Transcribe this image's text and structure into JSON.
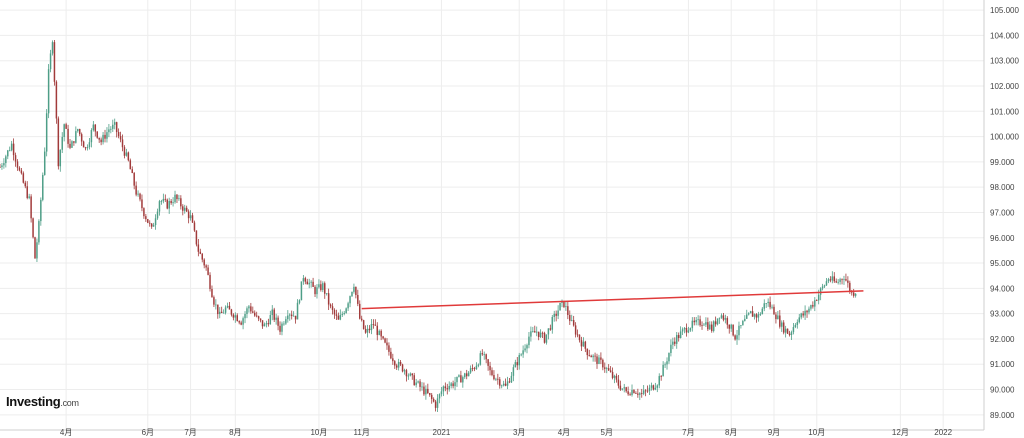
{
  "brand": {
    "name": "Investing",
    "suffix": ".com"
  },
  "colors": {
    "up": "#4e9e87",
    "down": "#a13a3a",
    "trendline": "#e03a3a",
    "grid": "#ededed",
    "axis": "#cfcfcf"
  },
  "chart_data": {
    "type": "candlestick",
    "title": "",
    "xlabel": "",
    "ylabel": "",
    "ylim": [
      88.4,
      105.4
    ],
    "grid": true,
    "legend": "none",
    "y_ticks": [
      "89.000",
      "90.000",
      "91.000",
      "92.000",
      "93.000",
      "94.000",
      "95.000",
      "96.000",
      "97.000",
      "98.000",
      "99.000",
      "100.000",
      "101.000",
      "102.000",
      "103.000",
      "104.000",
      "105.000"
    ],
    "x_ticks": [
      {
        "label": "4月",
        "t": 34
      },
      {
        "label": "6月",
        "t": 76
      },
      {
        "label": "7月",
        "t": 98
      },
      {
        "label": "8月",
        "t": 121
      },
      {
        "label": "10月",
        "t": 164
      },
      {
        "label": "11月",
        "t": 186
      },
      {
        "label": "2021",
        "t": 227
      },
      {
        "label": "3月",
        "t": 267
      },
      {
        "label": "4月",
        "t": 290
      },
      {
        "label": "5月",
        "t": 312
      },
      {
        "label": "7月",
        "t": 354
      },
      {
        "label": "8月",
        "t": 376
      },
      {
        "label": "9月",
        "t": 398
      },
      {
        "label": "10月",
        "t": 420
      },
      {
        "label": "12月",
        "t": 463
      },
      {
        "label": "2022",
        "t": 485
      }
    ],
    "t_range": [
      0,
      506
    ],
    "anchors": [
      [
        0,
        98.8
      ],
      [
        6,
        99.7
      ],
      [
        10,
        98.6
      ],
      [
        15,
        97.5
      ],
      [
        18,
        95.2
      ],
      [
        20,
        96.5
      ],
      [
        23,
        99.5
      ],
      [
        25,
        102.5
      ],
      [
        27,
        103.9
      ],
      [
        30,
        99.0
      ],
      [
        33,
        100.5
      ],
      [
        36,
        99.5
      ],
      [
        40,
        100.3
      ],
      [
        44,
        99.5
      ],
      [
        48,
        100.4
      ],
      [
        52,
        99.8
      ],
      [
        56,
        100.3
      ],
      [
        59,
        100.4
      ],
      [
        62,
        99.8
      ],
      [
        66,
        99.0
      ],
      [
        70,
        97.8
      ],
      [
        74,
        97.0
      ],
      [
        78,
        96.3
      ],
      [
        82,
        97.5
      ],
      [
        86,
        97.3
      ],
      [
        90,
        97.6
      ],
      [
        94,
        97.2
      ],
      [
        98,
        96.8
      ],
      [
        102,
        95.5
      ],
      [
        106,
        94.8
      ],
      [
        110,
        93.5
      ],
      [
        113,
        92.9
      ],
      [
        116,
        93.2
      ],
      [
        120,
        93.0
      ],
      [
        124,
        92.7
      ],
      [
        128,
        93.3
      ],
      [
        132,
        92.8
      ],
      [
        136,
        92.5
      ],
      [
        140,
        93.0
      ],
      [
        144,
        92.4
      ],
      [
        148,
        93.1
      ],
      [
        152,
        92.9
      ],
      [
        156,
        94.5
      ],
      [
        159,
        94.2
      ],
      [
        162,
        93.9
      ],
      [
        166,
        94.1
      ],
      [
        170,
        93.2
      ],
      [
        174,
        92.7
      ],
      [
        178,
        93.3
      ],
      [
        182,
        94.2
      ],
      [
        185,
        92.8
      ],
      [
        188,
        92.2
      ],
      [
        192,
        92.6
      ],
      [
        196,
        92.0
      ],
      [
        200,
        91.5
      ],
      [
        204,
        91.0
      ],
      [
        208,
        90.8
      ],
      [
        212,
        90.4
      ],
      [
        216,
        90.1
      ],
      [
        220,
        89.8
      ],
      [
        224,
        89.4
      ],
      [
        228,
        90.1
      ],
      [
        232,
        90.2
      ],
      [
        236,
        90.4
      ],
      [
        240,
        90.6
      ],
      [
        244,
        90.9
      ],
      [
        248,
        91.4
      ],
      [
        252,
        90.7
      ],
      [
        256,
        90.4
      ],
      [
        260,
        90.1
      ],
      [
        264,
        90.8
      ],
      [
        268,
        91.4
      ],
      [
        272,
        92.1
      ],
      [
        276,
        92.3
      ],
      [
        280,
        92.0
      ],
      [
        284,
        92.7
      ],
      [
        288,
        93.3
      ],
      [
        290,
        93.4
      ],
      [
        294,
        92.6
      ],
      [
        298,
        92.0
      ],
      [
        302,
        91.5
      ],
      [
        306,
        91.2
      ],
      [
        310,
        91.0
      ],
      [
        314,
        90.6
      ],
      [
        318,
        90.2
      ],
      [
        322,
        89.9
      ],
      [
        326,
        90.0
      ],
      [
        330,
        89.8
      ],
      [
        334,
        90.0
      ],
      [
        338,
        90.3
      ],
      [
        342,
        91.0
      ],
      [
        346,
        91.9
      ],
      [
        350,
        92.2
      ],
      [
        354,
        92.5
      ],
      [
        358,
        92.6
      ],
      [
        362,
        92.7
      ],
      [
        366,
        92.4
      ],
      [
        370,
        93.0
      ],
      [
        374,
        92.7
      ],
      [
        378,
        92.1
      ],
      [
        382,
        92.6
      ],
      [
        386,
        93.0
      ],
      [
        390,
        92.9
      ],
      [
        394,
        93.5
      ],
      [
        398,
        93.1
      ],
      [
        402,
        92.5
      ],
      [
        406,
        92.2
      ],
      [
        410,
        92.8
      ],
      [
        414,
        93.0
      ],
      [
        418,
        93.4
      ],
      [
        422,
        93.9
      ],
      [
        426,
        94.4
      ],
      [
        430,
        94.2
      ],
      [
        434,
        94.5
      ],
      [
        438,
        93.8
      ],
      [
        440,
        93.9
      ]
    ],
    "trendline": {
      "from": [
        186,
        93.2
      ],
      "to": [
        444,
        93.9
      ]
    }
  }
}
